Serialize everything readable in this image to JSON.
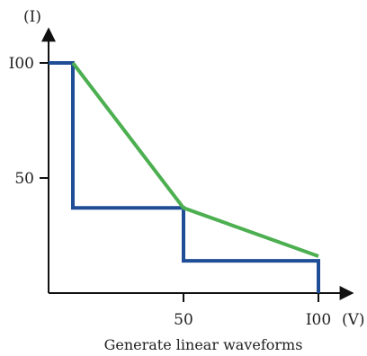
{
  "chart_data": {
    "type": "line",
    "caption": "Generate linear waveforms",
    "xlabel": "(V)",
    "ylabel": "(I)",
    "xlim": [
      0,
      100
    ],
    "ylim": [
      0,
      100
    ],
    "x_ticks": [
      {
        "value": 50,
        "label": "50"
      },
      {
        "value": 100,
        "label": "I00"
      }
    ],
    "y_ticks": [
      {
        "value": 50,
        "label": "50"
      },
      {
        "value": 100,
        "label": "I00"
      }
    ],
    "grid": false,
    "series": [
      {
        "color": "#1f4e96",
        "shape": "step",
        "x": [
          0,
          9,
          9,
          50,
          50,
          100,
          100
        ],
        "y": [
          100,
          100,
          37,
          37,
          14,
          14,
          0
        ]
      },
      {
        "color": "#4caf50",
        "shape": "line",
        "x": [
          9,
          50,
          100
        ],
        "y": [
          100,
          37,
          16
        ]
      }
    ]
  }
}
